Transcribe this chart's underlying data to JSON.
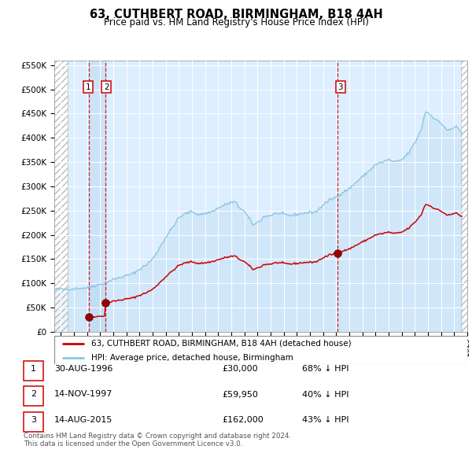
{
  "title": "63, CUTHBERT ROAD, BIRMINGHAM, B18 4AH",
  "subtitle": "Price paid vs. HM Land Registry's House Price Index (HPI)",
  "hpi_color": "#89c4e1",
  "price_color": "#cc0000",
  "bg_plot": "#ddeeff",
  "sale_t": [
    1996.667,
    1997.875,
    2015.625
  ],
  "sale_prices": [
    30000,
    59950,
    162000
  ],
  "ylim": [
    0,
    560000
  ],
  "yticks": [
    0,
    50000,
    100000,
    150000,
    200000,
    250000,
    300000,
    350000,
    400000,
    450000,
    500000,
    550000
  ],
  "legend_price_label": "63, CUTHBERT ROAD, BIRMINGHAM, B18 4AH (detached house)",
  "legend_hpi_label": "HPI: Average price, detached house, Birmingham",
  "table_rows": [
    {
      "num": "1",
      "date": "30-AUG-1996",
      "price": "£30,000",
      "note": "68% ↓ HPI"
    },
    {
      "num": "2",
      "date": "14-NOV-1997",
      "price": "£59,950",
      "note": "40% ↓ HPI"
    },
    {
      "num": "3",
      "date": "14-AUG-2015",
      "price": "£162,000",
      "note": "43% ↓ HPI"
    }
  ],
  "footnote": "Contains HM Land Registry data © Crown copyright and database right 2024.\nThis data is licensed under the Open Government Licence v3.0.",
  "xlim_start": 1994.0,
  "xlim_end": 2025.5
}
